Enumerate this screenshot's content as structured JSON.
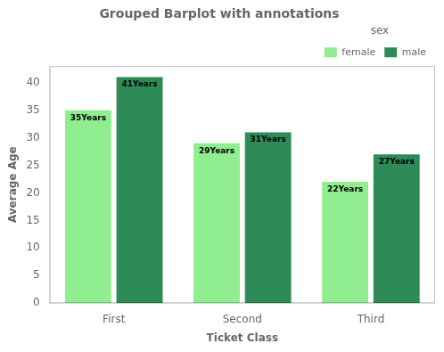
{
  "chart_data": {
    "type": "bar",
    "title": "Grouped Barplot with annotations",
    "xlabel": "Ticket Class",
    "ylabel": "Average Age",
    "categories": [
      "First",
      "Second",
      "Third"
    ],
    "series": [
      {
        "name": "female",
        "color": "#90EE90",
        "values": [
          35,
          29,
          22
        ],
        "value_labels": [
          "35Years",
          "29Years",
          "22Years"
        ]
      },
      {
        "name": "male",
        "color": "#2E8B57",
        "values": [
          41,
          31,
          27
        ],
        "value_labels": [
          "41Years",
          "31Years",
          "27Years"
        ]
      }
    ],
    "legend_title": "sex",
    "legend": "upper right",
    "data_labels": true,
    "grid": false,
    "ylim": [
      0,
      43
    ],
    "yticks": [
      0,
      5,
      10,
      15,
      20,
      25,
      30,
      35,
      40
    ]
  }
}
